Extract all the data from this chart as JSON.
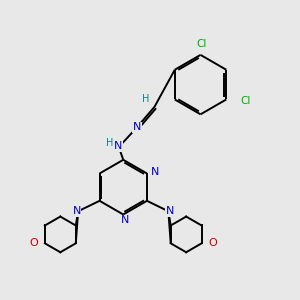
{
  "bg_color": "#e8e8e8",
  "bond_color": "#000000",
  "n_color": "#0000cc",
  "o_color": "#cc0000",
  "cl_color": "#00aa00",
  "h_color": "#008888",
  "figsize": [
    3.0,
    3.0
  ],
  "dpi": 100,
  "lw": 1.4,
  "fs": 7.5,
  "xlim": [
    0,
    10
  ],
  "ylim": [
    0,
    10
  ]
}
